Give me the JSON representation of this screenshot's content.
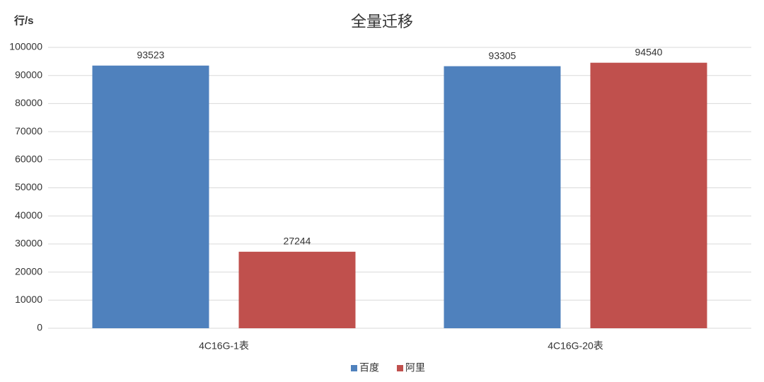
{
  "chart_data": {
    "type": "bar",
    "title": "全量迁移",
    "y_label": "行/s",
    "categories": [
      "4C16G-1表",
      "4C16G-20表"
    ],
    "series": [
      {
        "name": "百度",
        "color": "#4f81bd",
        "values": [
          93523,
          93305
        ]
      },
      {
        "name": "阿里",
        "color": "#c0504d",
        "values": [
          27244,
          94540
        ]
      }
    ],
    "ylim": [
      0,
      100000
    ],
    "yticks": [
      0,
      10000,
      20000,
      30000,
      40000,
      50000,
      60000,
      70000,
      80000,
      90000,
      100000
    ],
    "grid": true,
    "legend": "bottom"
  }
}
